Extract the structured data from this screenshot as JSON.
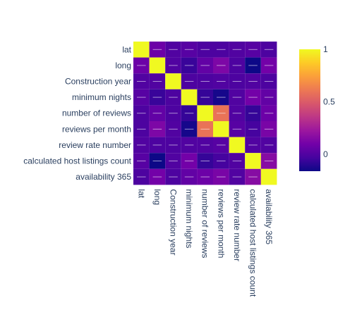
{
  "chart_data": {
    "type": "heatmap",
    "title": "",
    "xlabel": "",
    "ylabel": "",
    "variables": [
      "lat",
      "long",
      "Construction year",
      "minimum nights",
      "number of reviews",
      "reviews per month",
      "review rate number",
      "calculated host listings count",
      "availability 365"
    ],
    "matrix": [
      [
        1.0,
        0.08,
        0.0,
        0.02,
        -0.01,
        -0.01,
        0.0,
        0.02,
        -0.01
      ],
      [
        0.08,
        1.0,
        0.0,
        -0.06,
        0.05,
        0.13,
        -0.01,
        -0.16,
        0.1
      ],
      [
        0.0,
        0.0,
        1.0,
        -0.01,
        -0.01,
        0.0,
        -0.01,
        0.0,
        -0.01
      ],
      [
        0.02,
        -0.06,
        -0.01,
        1.0,
        -0.07,
        -0.14,
        0.0,
        0.1,
        0.05
      ],
      [
        -0.01,
        0.05,
        -0.01,
        -0.07,
        1.0,
        0.59,
        0.0,
        -0.07,
        0.08
      ],
      [
        -0.01,
        0.13,
        0.0,
        -0.14,
        0.59,
        1.0,
        0.02,
        -0.03,
        0.12
      ],
      [
        0.0,
        -0.01,
        -0.01,
        0.0,
        0.0,
        0.02,
        1.0,
        0.0,
        0.0
      ],
      [
        0.02,
        -0.16,
        0.0,
        0.1,
        -0.07,
        -0.03,
        0.0,
        1.0,
        0.16
      ],
      [
        -0.01,
        0.1,
        -0.01,
        0.05,
        0.08,
        0.12,
        0.0,
        0.16,
        1.0
      ]
    ],
    "zmin": -0.16,
    "zmax": 1.0,
    "colorscale": [
      "#0d0887",
      "#46039f",
      "#7201a8",
      "#9c179e",
      "#bd3786",
      "#d8576b",
      "#ed7953",
      "#fb9f3a",
      "#fdca26",
      "#f0f921"
    ],
    "colorbar": {
      "ticks": [
        0,
        0.5,
        1
      ],
      "tick_labels": [
        "0",
        "0.5",
        "1"
      ]
    },
    "grid": false,
    "legend_position": "right"
  }
}
